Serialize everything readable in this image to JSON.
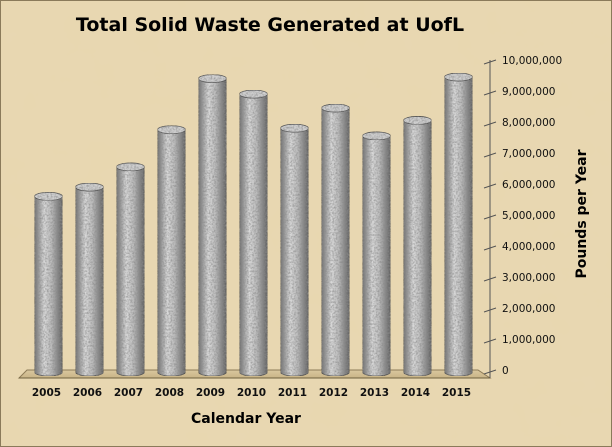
{
  "chart_data": {
    "type": "bar",
    "title": "Total Solid Waste Generated at UofL",
    "xlabel": "Calendar Year",
    "ylabel": "Pounds per Year",
    "categories": [
      "2005",
      "2006",
      "2007",
      "2008",
      "2009",
      "2010",
      "2011",
      "2012",
      "2013",
      "2014",
      "2015"
    ],
    "values": [
      5600000,
      5900000,
      6550000,
      7750000,
      9400000,
      8900000,
      7800000,
      8450000,
      7550000,
      8050000,
      9450000
    ],
    "ylim": [
      0,
      10000000
    ],
    "yticks": [
      0,
      1000000,
      2000000,
      3000000,
      4000000,
      5000000,
      6000000,
      7000000,
      8000000,
      9000000,
      10000000
    ],
    "ytick_labels": [
      "0",
      "1,000,000",
      "2,000,000",
      "3,000,000",
      "4,000,000",
      "5,000,000",
      "6,000,000",
      "7,000,000",
      "8,000,000",
      "9,000,000",
      "10,000,000"
    ],
    "legend": "none",
    "grid": false
  },
  "colors": {
    "background": "#e8d7b0",
    "bar": "#9a9a9a",
    "bar_light": "#e0e0e0",
    "bar_dark": "#555555"
  }
}
